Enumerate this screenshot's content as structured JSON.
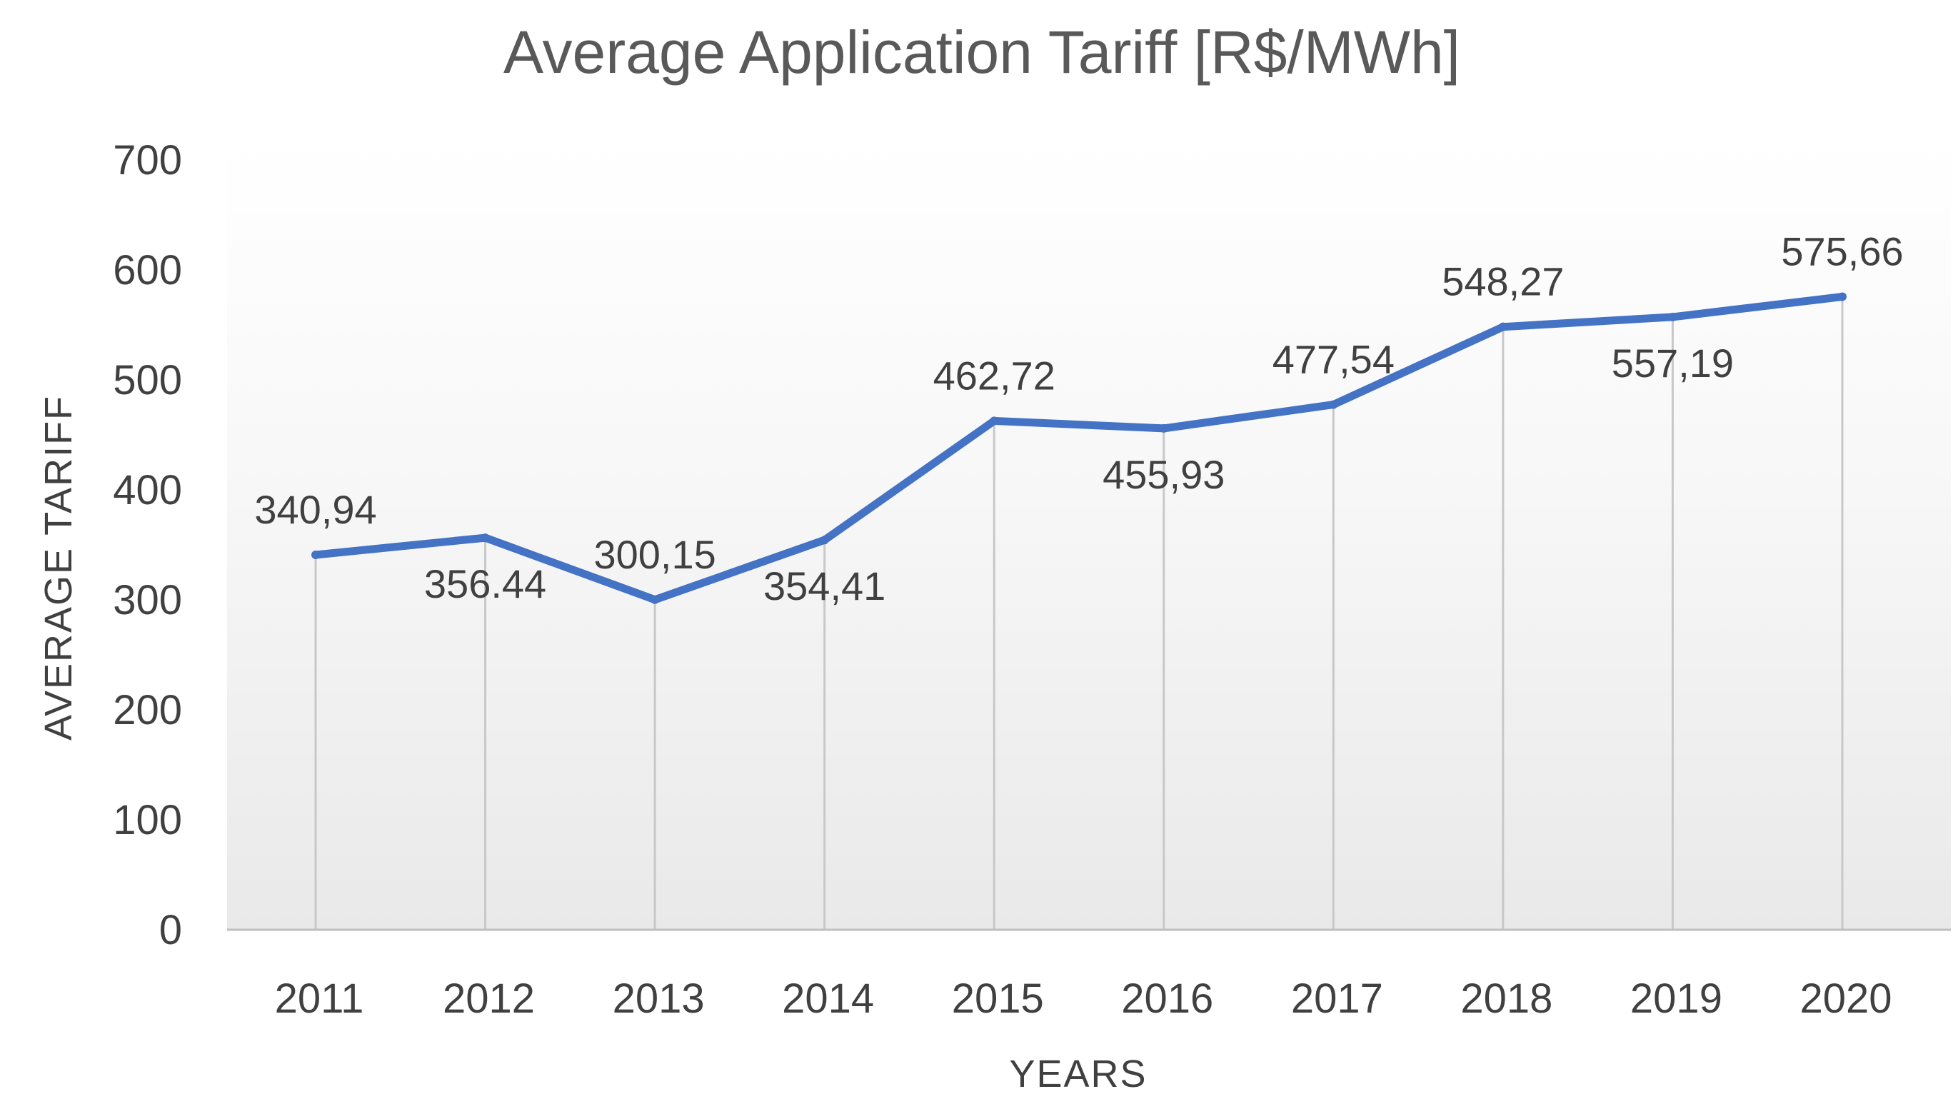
{
  "chart_data": {
    "type": "line",
    "title": "Average Application  Tariff [R$/MWh]",
    "xlabel": "YEARS",
    "ylabel": "AVERAGE TARIFF",
    "categories": [
      "2011",
      "2012",
      "2013",
      "2014",
      "2015",
      "2016",
      "2017",
      "2018",
      "2019",
      "2020"
    ],
    "series": [
      {
        "name": "Average Application Tariff",
        "values": [
          340.94,
          356.44,
          300.15,
          354.41,
          462.72,
          455.93,
          477.54,
          548.27,
          557.19,
          575.66
        ],
        "labels": [
          "340,94",
          "356.44",
          "300,15",
          "354,41",
          "462,72",
          "455,93",
          "477,54",
          "548,27",
          "557,19",
          "575,66"
        ],
        "label_position": [
          "above",
          "below",
          "above",
          "below",
          "above",
          "below",
          "above",
          "above",
          "below",
          "above"
        ],
        "color": "#4472C4"
      }
    ],
    "ylim": [
      0,
      700
    ],
    "yticks": [
      0,
      100,
      200,
      300,
      400,
      500,
      600,
      700
    ],
    "grid": "vertical",
    "legend": "none"
  }
}
